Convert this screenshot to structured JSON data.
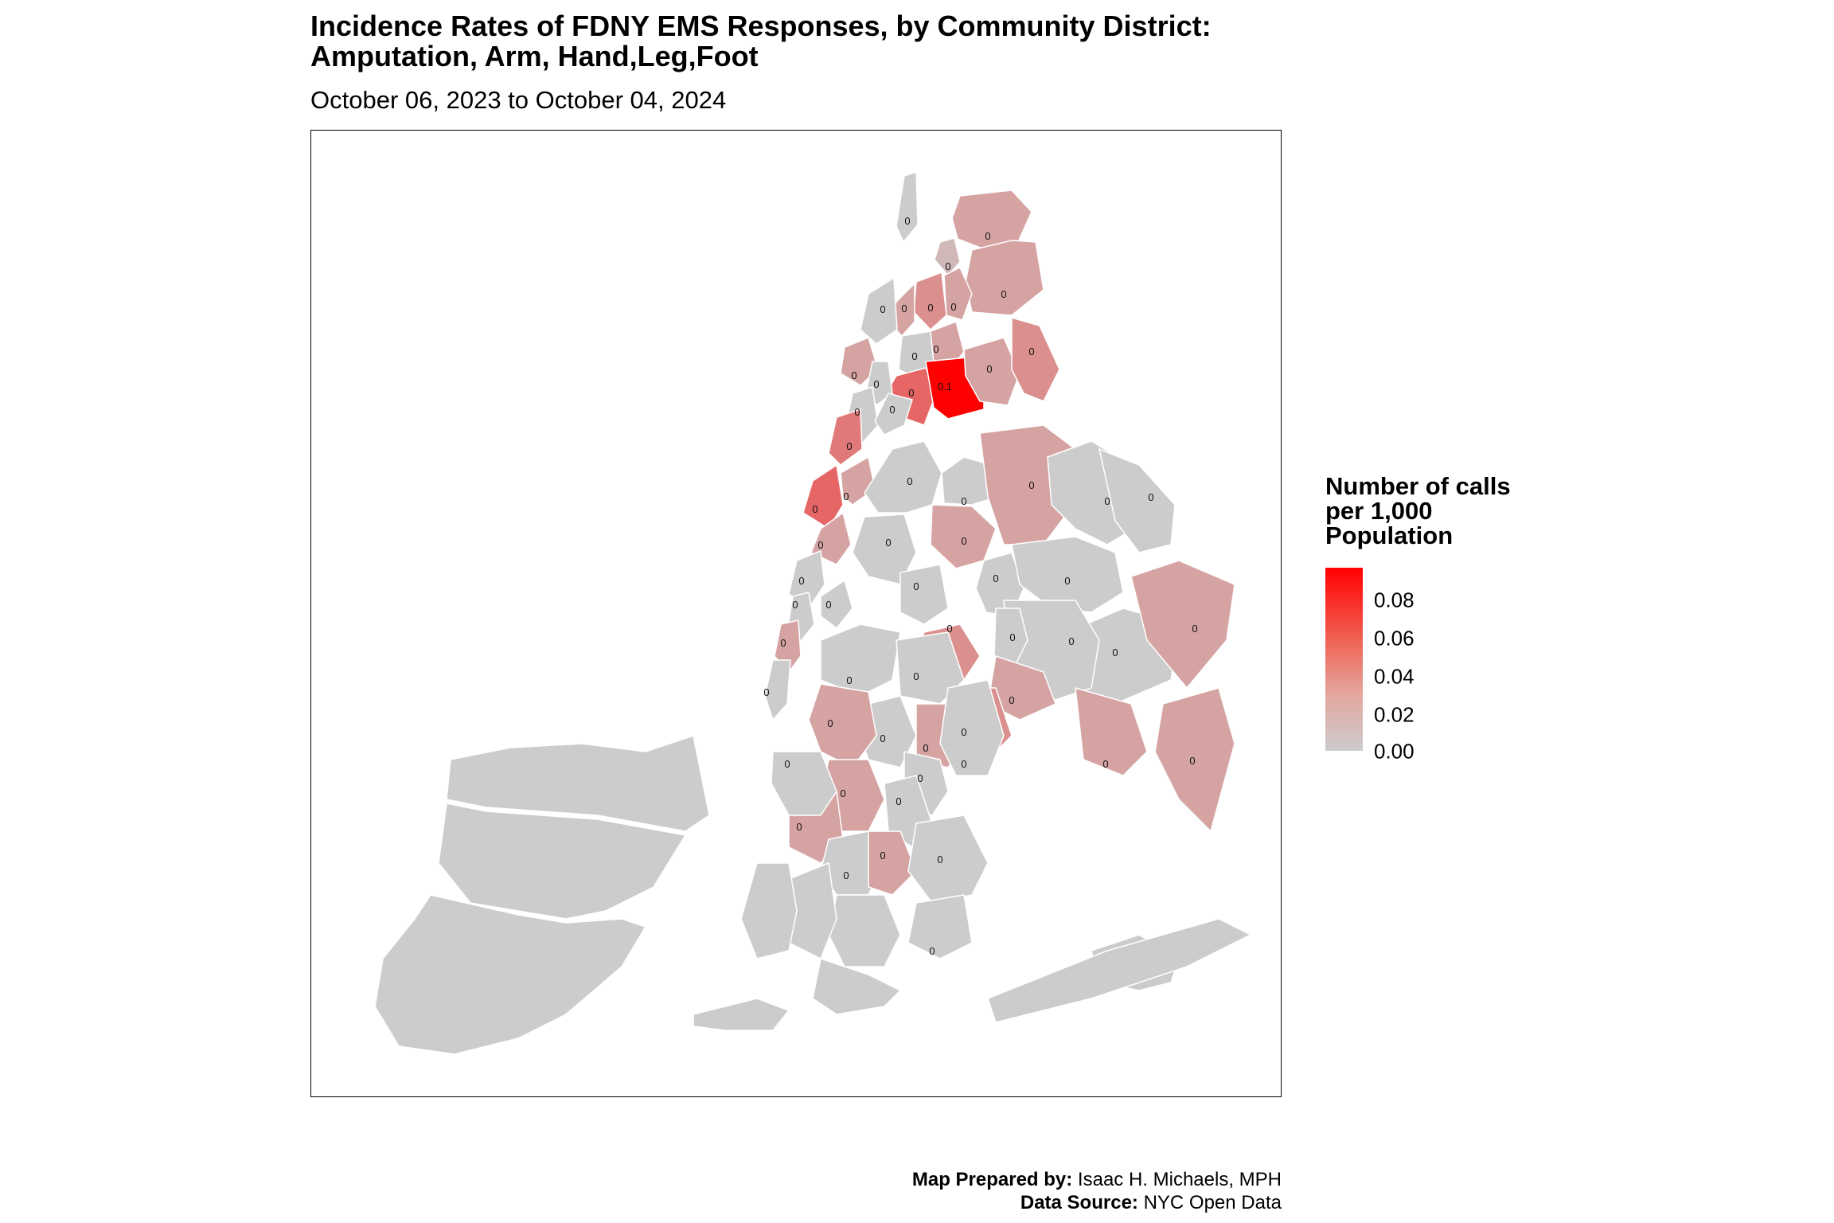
{
  "title": "Incidence Rates of FDNY EMS Responses, by Community District:\nAmputation, Arm, Hand,Leg,Foot",
  "subtitle": "October 06, 2023 to October 04, 2024",
  "legend": {
    "title": "Number of calls\nper 1,000\nPopulation",
    "ticks": [
      "0.08",
      "0.06",
      "0.04",
      "0.02",
      "0.00"
    ],
    "color_low": "#cccccc",
    "color_high": "#ff0000"
  },
  "credits": {
    "prepared_label": "Map Prepared by:",
    "prepared_value": " Isaac H. Michaels, MPH",
    "source_label": "Data Source:",
    "source_value": " NYC Open Data"
  },
  "districts": [
    {
      "label": "0",
      "rate": 0.0
    },
    {
      "label": "0",
      "rate": 0.02
    },
    {
      "label": "0",
      "rate": 0.01
    },
    {
      "label": "0",
      "rate": 0.02
    },
    {
      "label": "0",
      "rate": 0.02
    },
    {
      "label": "0",
      "rate": 0.03
    },
    {
      "label": "0",
      "rate": 0.02
    },
    {
      "label": "0",
      "rate": 0.0
    },
    {
      "label": "0",
      "rate": 0.0
    },
    {
      "label": "0",
      "rate": 0.02
    },
    {
      "label": "0",
      "rate": 0.05
    },
    {
      "label": "0.1",
      "rate": 0.1
    },
    {
      "label": "0",
      "rate": 0.02
    },
    {
      "label": "0",
      "rate": 0.03
    },
    {
      "label": "0",
      "rate": 0.02
    },
    {
      "label": "0",
      "rate": 0.0
    },
    {
      "label": "0",
      "rate": 0.0
    },
    {
      "label": "0",
      "rate": 0.04
    },
    {
      "label": "0",
      "rate": 0.0
    },
    {
      "label": "0",
      "rate": 0.05
    },
    {
      "label": "0",
      "rate": 0.02
    },
    {
      "label": "0",
      "rate": 0.02
    },
    {
      "label": "0",
      "rate": 0.0
    },
    {
      "label": "0",
      "rate": 0.0
    },
    {
      "label": "0",
      "rate": 0.02
    },
    {
      "label": "0",
      "rate": 0.0
    },
    {
      "label": "0",
      "rate": 0.0
    },
    {
      "label": "0",
      "rate": 0.0
    },
    {
      "label": "0",
      "rate": 0.0
    },
    {
      "label": "0",
      "rate": 0.0
    },
    {
      "label": "0",
      "rate": 0.02
    },
    {
      "label": "0",
      "rate": 0.0
    },
    {
      "label": "0",
      "rate": 0.02
    },
    {
      "label": "0",
      "rate": 0.0
    },
    {
      "label": "0",
      "rate": 0.0
    },
    {
      "label": "0",
      "rate": 0.0
    },
    {
      "label": "0",
      "rate": 0.0
    },
    {
      "label": "0",
      "rate": 0.02
    },
    {
      "label": "0",
      "rate": 0.02
    },
    {
      "label": "0",
      "rate": 0.0
    },
    {
      "label": "0",
      "rate": 0.02
    },
    {
      "label": "0",
      "rate": 0.0
    },
    {
      "label": "0",
      "rate": 0.02
    },
    {
      "label": "0",
      "rate": 0.03
    },
    {
      "label": "0",
      "rate": 0.03
    },
    {
      "label": "0",
      "rate": 0.0
    },
    {
      "label": "0",
      "rate": 0.0
    },
    {
      "label": "0",
      "rate": 0.0
    },
    {
      "label": "0",
      "rate": 0.0
    },
    {
      "label": "0",
      "rate": 0.02
    },
    {
      "label": "0",
      "rate": 0.02
    },
    {
      "label": "0",
      "rate": 0.0
    },
    {
      "label": "0",
      "rate": 0.0
    },
    {
      "label": "0",
      "rate": 0.0
    },
    {
      "label": "0",
      "rate": 0.02
    },
    {
      "label": "0",
      "rate": 0.02
    },
    {
      "label": "0",
      "rate": 0.0
    },
    {
      "label": "0",
      "rate": 0.0
    },
    {
      "label": "0",
      "rate": 0.02
    },
    {
      "label": "0",
      "rate": 0.0
    },
    {
      "label": "0",
      "rate": 0.0
    }
  ]
}
